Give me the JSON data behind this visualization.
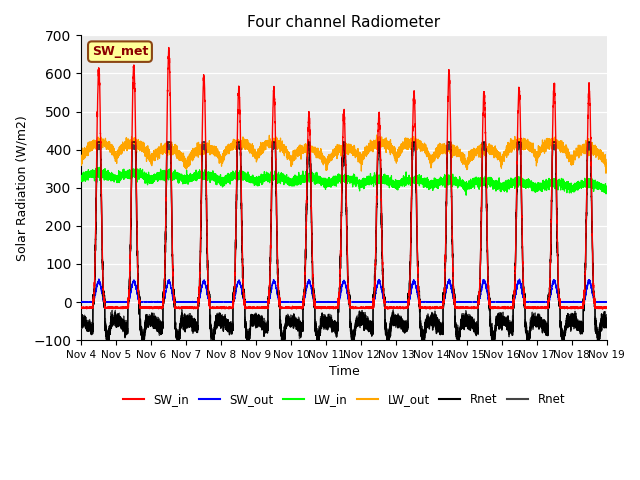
{
  "title": "Four channel Radiometer",
  "xlabel": "Time",
  "ylabel": "Solar Radiation (W/m2)",
  "ylim": [
    -100,
    700
  ],
  "x_tick_labels": [
    "Nov 4",
    "Nov 5",
    "Nov 6",
    "Nov 7",
    "Nov 8",
    "Nov 9",
    "Nov 10",
    "Nov 11",
    "Nov 12",
    "Nov 13",
    "Nov 14",
    "Nov 15",
    "Nov 16",
    "Nov 17",
    "Nov 18",
    "Nov 19"
  ],
  "annotation_label": "SW_met",
  "annotation_color": "#8B0000",
  "annotation_bg": "#FFFF99",
  "annotation_border": "#8B4513",
  "legend_entries": [
    "SW_in",
    "SW_out",
    "LW_in",
    "LW_out",
    "Rnet",
    "Rnet"
  ],
  "background_color": "#ebebeb",
  "n_days": 15,
  "pts_per_day": 480,
  "day_peaks_sw_in": [
    610,
    620,
    660,
    590,
    560,
    555,
    490,
    495,
    490,
    545,
    600,
    550,
    560,
    570,
    560
  ],
  "sw_in_night": -15,
  "sw_out_peak": 55,
  "lw_in_base": 325,
  "lw_out_base": 360,
  "rnet_night_base": -50
}
